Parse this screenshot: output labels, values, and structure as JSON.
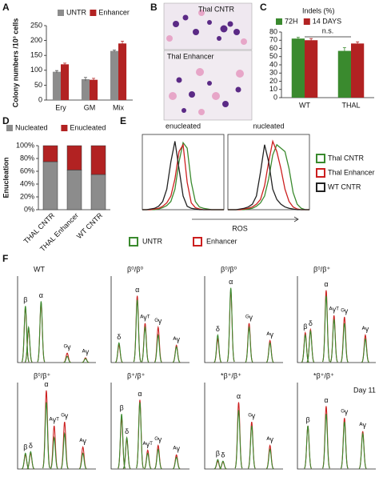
{
  "chart_data": [
    {
      "type": "bar",
      "panel": "A",
      "ylabel": "Colony numbers /10³ cells",
      "categories": [
        "Ery",
        "GM",
        "Mix"
      ],
      "series": [
        {
          "name": "UNTR",
          "color": "#8c8c8c",
          "values": [
            95,
            70,
            165
          ],
          "errors": [
            4,
            6,
            3
          ]
        },
        {
          "name": "Enhancer",
          "color": "#b22222",
          "values": [
            120,
            68,
            190
          ],
          "errors": [
            4,
            5,
            8
          ]
        }
      ],
      "ylim": [
        0,
        250
      ],
      "yticks": [
        0,
        50,
        100,
        150,
        200,
        250
      ]
    },
    {
      "type": "bar",
      "panel": "C",
      "title": "Indels (%)",
      "annotation": "n.s.",
      "categories": [
        "WT",
        "THAL"
      ],
      "series": [
        {
          "name": "72H",
          "color": "#3a8a2e",
          "values": [
            72,
            57
          ],
          "errors": [
            1.5,
            4
          ]
        },
        {
          "name": "14 DAYS",
          "color": "#b22222",
          "values": [
            70,
            66
          ],
          "errors": [
            2,
            2
          ]
        }
      ],
      "ylim": [
        0,
        80
      ],
      "yticks": [
        0,
        10,
        20,
        30,
        40,
        50,
        60,
        70,
        80
      ]
    },
    {
      "type": "stacked-bar",
      "panel": "D",
      "ylabel": "Enucleation",
      "categories": [
        "THAL CNTR",
        "THAL Enhancer",
        "WT CNTR"
      ],
      "series": [
        {
          "name": "Nucleated",
          "color": "#8c8c8c",
          "values": [
            75,
            62,
            55
          ]
        },
        {
          "name": "Enucleated",
          "color": "#b22222",
          "values": [
            25,
            38,
            45
          ]
        }
      ],
      "ylim": [
        0,
        100
      ],
      "yticks": [
        {
          "value": 0,
          "label": "0%"
        },
        {
          "value": 20,
          "label": "20%"
        },
        {
          "value": 40,
          "label": "40%"
        },
        {
          "value": 60,
          "label": "60%"
        },
        {
          "value": 80,
          "label": "80%"
        },
        {
          "value": 100,
          "label": "100%"
        }
      ]
    },
    {
      "type": "line",
      "panel": "E",
      "xlabel": "ROS",
      "legend": [
        {
          "name": "Thal CNTR",
          "color": "#3a8a2e"
        },
        {
          "name": "Thal Enhancer",
          "color": "#cc1f1f"
        },
        {
          "name": "WT CNTR",
          "color": "#222222"
        }
      ],
      "x": [
        0,
        0.25,
        0.5,
        0.75,
        1,
        1.25,
        1.5,
        1.75,
        2,
        2.25,
        2.5,
        2.75,
        3,
        3.25,
        3.5,
        3.75,
        4,
        4.25,
        4.5,
        4.75,
        5
      ],
      "xlim": [
        0,
        5
      ],
      "ylim": [
        0,
        110
      ],
      "subplots": [
        {
          "title": "enucleated",
          "series": [
            {
              "values": [
                0,
                0,
                0,
                0,
                1,
                3,
                6,
                12,
                30,
                70,
                98,
                90,
                40,
                12,
                4,
                2,
                1,
                0,
                0,
                0,
                0
              ]
            },
            {
              "values": [
                0,
                0,
                0,
                1,
                2,
                5,
                10,
                20,
                45,
                85,
                95,
                40,
                10,
                3,
                1,
                0,
                0,
                0,
                0,
                0,
                0
              ]
            },
            {
              "values": [
                0,
                0,
                1,
                2,
                5,
                12,
                30,
                70,
                100,
                60,
                20,
                5,
                2,
                1,
                0,
                0,
                0,
                0,
                0,
                0,
                0
              ]
            }
          ]
        },
        {
          "title": "nucleated",
          "series": [
            {
              "values": [
                0,
                0,
                0,
                0,
                0,
                1,
                2,
                5,
                10,
                20,
                45,
                80,
                95,
                90,
                85,
                60,
                25,
                8,
                2,
                0,
                0
              ]
            },
            {
              "values": [
                0,
                0,
                0,
                0,
                1,
                2,
                4,
                8,
                15,
                35,
                70,
                100,
                85,
                60,
                30,
                12,
                4,
                1,
                0,
                0,
                0
              ]
            },
            {
              "values": [
                0,
                0,
                0,
                1,
                2,
                4,
                8,
                20,
                55,
                95,
                70,
                30,
                15,
                8,
                4,
                2,
                1,
                0,
                0,
                0,
                0
              ]
            }
          ]
        }
      ]
    },
    {
      "type": "chromatogram",
      "panel": "F",
      "series": [
        {
          "name": "UNTR",
          "color": "#3a8a2e"
        },
        {
          "name": "Enhancer",
          "color": "#cc1f1f"
        }
      ],
      "xlim": [
        0,
        30
      ],
      "ylim": [
        0,
        110
      ],
      "plots": [
        {
          "title": "WT",
          "peaks": [
            {
              "label": "β",
              "x": 3,
              "values": [
                72,
                70
              ]
            },
            {
              "label": null,
              "x": 4.2,
              "values": [
                45,
                42
              ]
            },
            {
              "label": "α",
              "x": 9,
              "values": [
                78,
                76
              ]
            },
            {
              "label": "ᴳγ",
              "x": 19,
              "values": [
                8,
                12
              ]
            },
            {
              "label": "ᴬγ",
              "x": 26,
              "values": [
                5,
                6
              ]
            }
          ]
        },
        {
          "title": "β⁰/β⁰",
          "peaks": [
            {
              "label": "δ",
              "x": 3,
              "values": [
                25,
                22
              ]
            },
            {
              "label": "α",
              "x": 10,
              "values": [
                80,
                85
              ]
            },
            {
              "label": "ᴬγᵀ",
              "x": 13,
              "values": [
                45,
                50
              ]
            },
            {
              "label": "ᴳγ",
              "x": 18,
              "values": [
                35,
                45
              ]
            },
            {
              "label": "ᴬγ",
              "x": 25,
              "values": [
                20,
                22
              ]
            }
          ]
        },
        {
          "title": "β⁰/β⁰",
          "peaks": [
            {
              "label": "δ",
              "x": 5,
              "values": [
                35,
                30
              ]
            },
            {
              "label": "α",
              "x": 10,
              "values": [
                95,
                92
              ]
            },
            {
              "label": "ᴳγ",
              "x": 17,
              "values": [
                45,
                50
              ]
            },
            {
              "label": "ᴬγ",
              "x": 25,
              "values": [
                25,
                28
              ]
            }
          ]
        },
        {
          "title": "β⁰/β⁺",
          "peaks": [
            {
              "label": "β",
              "x": 3,
              "values": [
                35,
                38
              ]
            },
            {
              "label": "δ",
              "x": 5,
              "values": [
                40,
                42
              ]
            },
            {
              "label": "α",
              "x": 11,
              "values": [
                85,
                92
              ]
            },
            {
              "label": "ᴬγᵀ",
              "x": 14,
              "values": [
                55,
                60
              ]
            },
            {
              "label": "ᴳγ",
              "x": 18,
              "values": [
                50,
                58
              ]
            },
            {
              "label": "ᴬγ",
              "x": 26,
              "values": [
                30,
                35
              ]
            }
          ]
        },
        {
          "title": "β⁰/β⁺",
          "peaks": [
            {
              "label": "β",
              "x": 3,
              "values": [
                20,
                18
              ]
            },
            {
              "label": "δ",
              "x": 5,
              "values": [
                22,
                20
              ]
            },
            {
              "label": "α",
              "x": 11,
              "values": [
                85,
                100
              ]
            },
            {
              "label": "ᴬγᵀ",
              "x": 14,
              "values": [
                40,
                55
              ]
            },
            {
              "label": "ᴳγ",
              "x": 18,
              "values": [
                45,
                60
              ]
            },
            {
              "label": "ᴬγ",
              "x": 25,
              "values": [
                20,
                28
              ]
            }
          ]
        },
        {
          "title": "β⁺/β⁺",
          "peaks": [
            {
              "label": "β",
              "x": 4,
              "values": [
                70,
                65
              ]
            },
            {
              "label": "δ",
              "x": 6,
              "values": [
                40,
                38
              ]
            },
            {
              "label": "α",
              "x": 11,
              "values": [
                85,
                88
              ]
            },
            {
              "label": "ᴬγᵀ",
              "x": 14,
              "values": [
                20,
                24
              ]
            },
            {
              "label": "ᴳγ",
              "x": 18,
              "values": [
                25,
                30
              ]
            },
            {
              "label": "ᴬγ",
              "x": 25,
              "values": [
                15,
                18
              ]
            }
          ]
        },
        {
          "title": "*β⁺/β⁺",
          "peaks": [
            {
              "label": "β",
              "x": 5,
              "values": [
                12,
                10
              ]
            },
            {
              "label": "δ",
              "x": 7,
              "values": [
                10,
                9
              ]
            },
            {
              "label": "α",
              "x": 13,
              "values": [
                75,
                85
              ]
            },
            {
              "label": "ᴳγ",
              "x": 18,
              "values": [
                55,
                60
              ]
            },
            {
              "label": "ᴬγ",
              "x": 25,
              "values": [
                25,
                30
              ]
            }
          ]
        },
        {
          "title": "*β⁺/β⁺",
          "annotation": "Day 11",
          "peaks": [
            {
              "label": "β",
              "x": 4,
              "values": [
                55,
                55
              ]
            },
            {
              "label": "α",
              "x": 11,
              "values": [
                70,
                80
              ]
            },
            {
              "label": "ᴳγ",
              "x": 18,
              "values": [
                60,
                65
              ]
            },
            {
              "label": "ᴬγ",
              "x": 25,
              "values": [
                45,
                48
              ]
            }
          ]
        }
      ]
    }
  ],
  "micrograph": {
    "panel": "B",
    "labels": [
      "Thal CNTR",
      "Thal Enhancer"
    ]
  }
}
